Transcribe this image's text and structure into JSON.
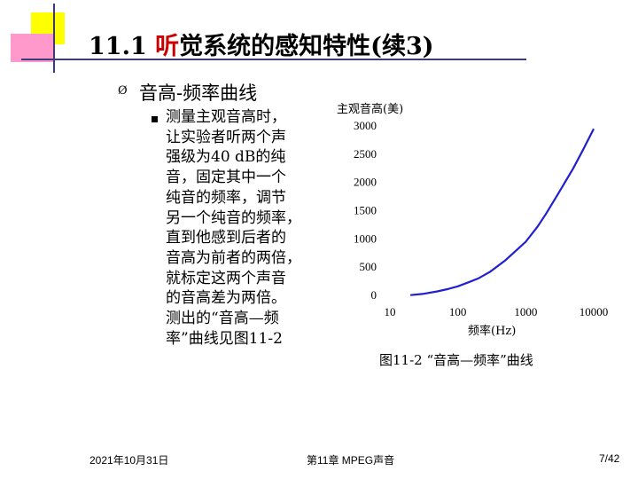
{
  "slide": {
    "title_prefix": "11.1 ",
    "title_highlight": "听",
    "title_suffix": "觉系统的感知特性(续3)",
    "colors": {
      "yellow": "#ffff00",
      "pink": "#ff99cc",
      "rule": "#3b3b7a",
      "title_highlight": "#cc0000",
      "curve": "#2020d0"
    },
    "bullet1_symbol": "Ø",
    "heading": "音高-频率曲线",
    "paragraph_lines": [
      "测量主观音高时，",
      "让实验者听两个声",
      "强级为40 dB的纯",
      "音，固定其中一个",
      "纯音的频率，调节",
      "另一个纯音的频率，",
      "直到他感到后者的",
      "音高为前者的两倍，",
      "就标定这两个声音",
      "的音高差为两倍。",
      "测出的“音高—频",
      "率”曲线见图11-2"
    ],
    "figure_caption": "图11-2 “音高—频率”曲线"
  },
  "chart_data": {
    "type": "line",
    "title": "",
    "xlabel": "频率(Hz)",
    "ylabel": "主观音高(美)",
    "x_scale": "log",
    "xlim": [
      10,
      10000
    ],
    "ylim": [
      0,
      3000
    ],
    "x_ticks": [
      10,
      100,
      1000,
      10000
    ],
    "y_ticks": [
      0,
      500,
      1000,
      1500,
      2000,
      2500,
      3000
    ],
    "grid": false,
    "legend": "none",
    "series": [
      {
        "name": "",
        "x": [
          20,
          30,
          50,
          70,
          100,
          150,
          200,
          300,
          500,
          700,
          1000,
          1500,
          2000,
          3000,
          5000,
          7000,
          10000
        ],
        "y": [
          5,
          25,
          70,
          110,
          160,
          240,
          300,
          420,
          620,
          780,
          950,
          1220,
          1450,
          1800,
          2250,
          2580,
          2950
        ]
      }
    ]
  },
  "footer": {
    "date": "2021年10月31日",
    "chapter": "第11章 MPEG声音",
    "page": "7/42"
  }
}
